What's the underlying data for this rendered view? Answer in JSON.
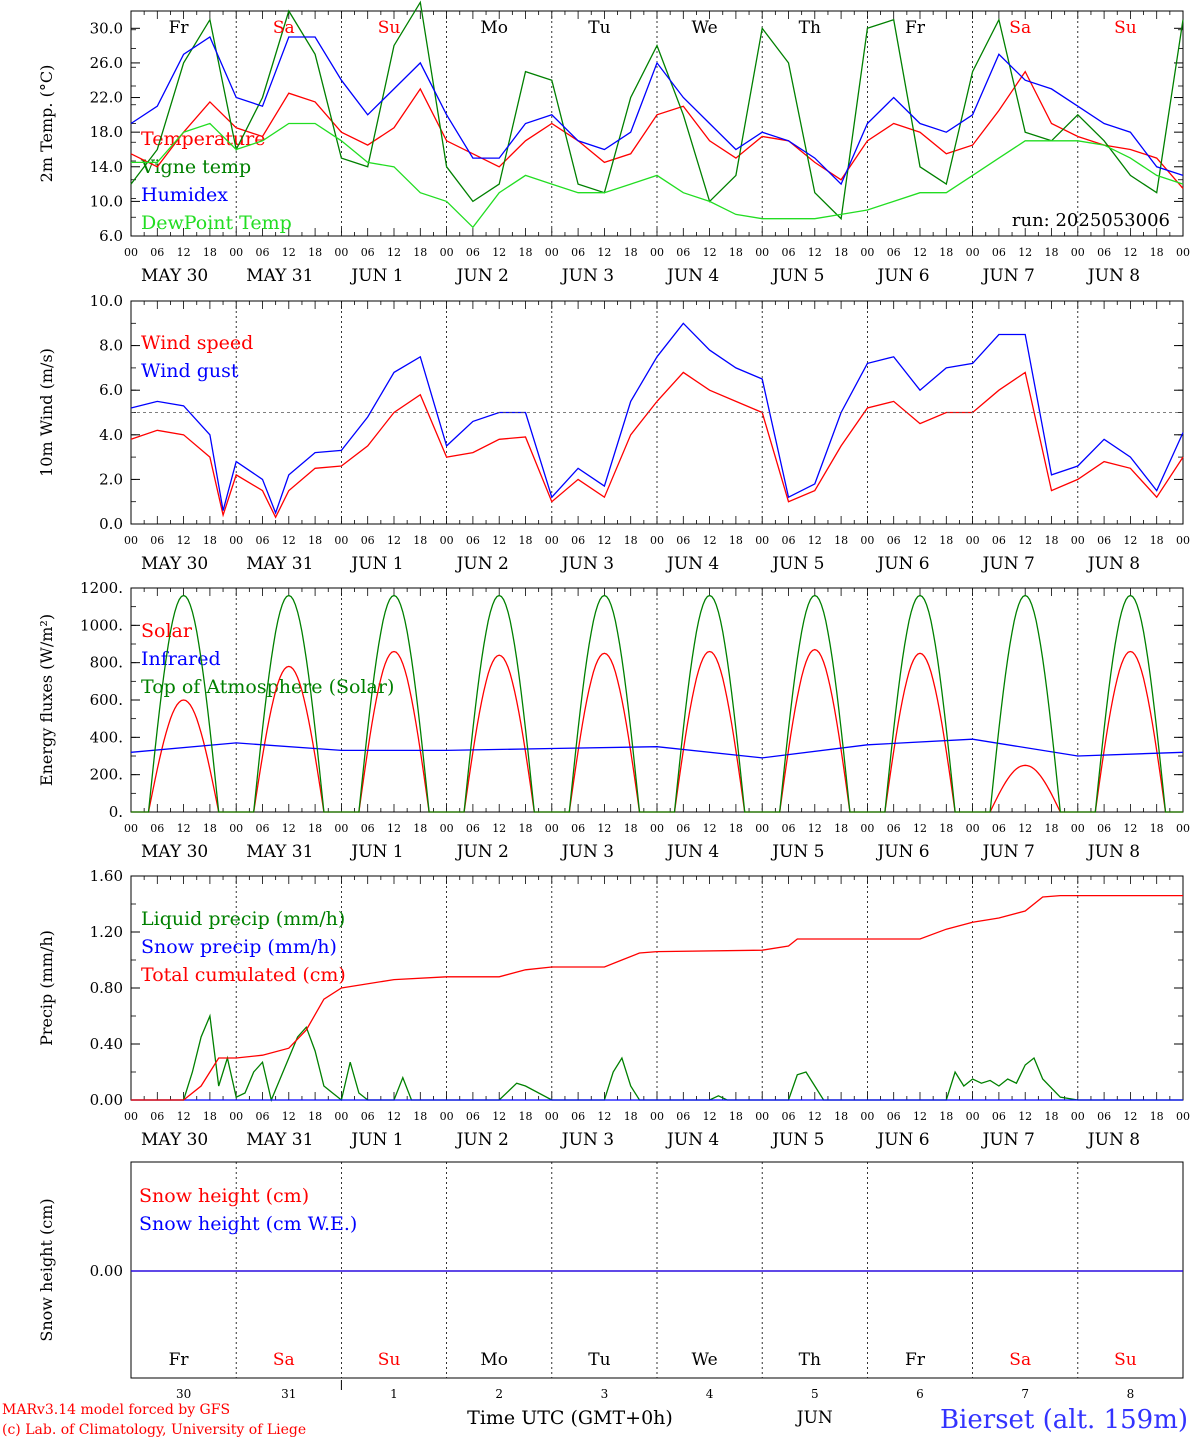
{
  "chart_data": [
    {
      "type": "line",
      "ylabel": "2m Temp. (°C)",
      "ylim": [
        6,
        32
      ],
      "yticks": [
        "6.0",
        "10.0",
        "14.0",
        "18.0",
        "22.0",
        "26.0",
        "30.0"
      ],
      "annotation": "run: 2025053006",
      "x_unit": "hours since 2025-05-30 00 UTC",
      "series": [
        {
          "name": "Temperature",
          "color": "#ff0000",
          "x": [
            0,
            6,
            12,
            18,
            24,
            30,
            36,
            42,
            48,
            54,
            60,
            66,
            72,
            78,
            84,
            90,
            96,
            102,
            108,
            114,
            120,
            126,
            132,
            138,
            144,
            150,
            156,
            162,
            168,
            174,
            180,
            186,
            192,
            198,
            204,
            210,
            216,
            222,
            228,
            234,
            240
          ],
          "values": [
            15.5,
            14,
            18,
            21.5,
            18.5,
            17.5,
            22.5,
            21.5,
            18,
            16.5,
            18.5,
            23,
            17,
            15.5,
            14,
            17,
            19,
            17,
            14.5,
            15.5,
            20,
            21,
            17,
            15,
            17.5,
            17,
            14.5,
            12.5,
            17,
            19,
            18,
            15.5,
            16.5,
            20.5,
            25,
            19,
            17.5,
            16.5,
            16,
            15,
            11.5
          ]
        },
        {
          "name": "Vigne temp",
          "color": "#008000",
          "x": [
            0,
            6,
            12,
            18,
            24,
            30,
            36,
            42,
            48,
            54,
            60,
            66,
            72,
            78,
            84,
            90,
            96,
            102,
            108,
            114,
            120,
            126,
            132,
            138,
            144,
            150,
            156,
            162,
            168,
            174,
            180,
            186,
            192,
            198,
            204,
            210,
            216,
            222,
            228,
            234,
            240
          ],
          "values": [
            12,
            16,
            26,
            31,
            16,
            22,
            32,
            27,
            15,
            14,
            28,
            33,
            14,
            10,
            12,
            25,
            24,
            12,
            11,
            22,
            28,
            20,
            10,
            13,
            30,
            26,
            11,
            8,
            30,
            31,
            14,
            12,
            25,
            31,
            18,
            17,
            20,
            17,
            13,
            11,
            31
          ]
        },
        {
          "name": "Humidex",
          "color": "#0000ff",
          "x": [
            0,
            6,
            12,
            18,
            24,
            30,
            36,
            42,
            48,
            54,
            60,
            66,
            72,
            78,
            84,
            90,
            96,
            102,
            108,
            114,
            120,
            126,
            132,
            138,
            144,
            150,
            156,
            162,
            168,
            174,
            180,
            186,
            192,
            198,
            204,
            210,
            216,
            222,
            228,
            234,
            240
          ],
          "values": [
            19,
            21,
            27,
            29,
            22,
            21,
            29,
            29,
            24,
            20,
            23,
            26,
            20,
            15,
            15,
            19,
            20,
            17,
            16,
            18,
            26,
            22,
            19,
            16,
            18,
            17,
            15,
            12,
            19,
            22,
            19,
            18,
            20,
            27,
            24,
            23,
            21,
            19,
            18,
            14,
            13
          ]
        },
        {
          "name": "DewPoint Temp",
          "color": "#22dd22",
          "x": [
            0,
            6,
            12,
            18,
            24,
            30,
            36,
            42,
            48,
            54,
            60,
            66,
            72,
            78,
            84,
            90,
            96,
            102,
            108,
            114,
            120,
            126,
            132,
            138,
            144,
            150,
            156,
            162,
            168,
            174,
            180,
            186,
            192,
            198,
            204,
            210,
            216,
            222,
            228,
            234,
            240
          ],
          "values": [
            14.5,
            14.5,
            18,
            19,
            16,
            17,
            19,
            19,
            17,
            14.5,
            14,
            11,
            10,
            7,
            11,
            13,
            12,
            11,
            11,
            12,
            13,
            11,
            10,
            8.5,
            8,
            8,
            8,
            8.5,
            9,
            10,
            11,
            11,
            13,
            15,
            17,
            17,
            17,
            16.5,
            15,
            13,
            12
          ]
        }
      ]
    },
    {
      "type": "line",
      "ylabel": "10m Wind (m/s)",
      "ylim": [
        0,
        10
      ],
      "yticks": [
        "0.0",
        "2.0",
        "4.0",
        "6.0",
        "8.0",
        "10.0"
      ],
      "reference_line": 5,
      "series": [
        {
          "name": "Wind speed",
          "color": "#ff0000",
          "x": [
            0,
            6,
            12,
            18,
            21,
            24,
            30,
            33,
            36,
            42,
            48,
            54,
            60,
            66,
            72,
            78,
            84,
            90,
            96,
            102,
            108,
            114,
            120,
            126,
            132,
            138,
            144,
            150,
            156,
            162,
            168,
            174,
            180,
            186,
            192,
            198,
            204,
            210,
            216,
            222,
            228,
            234,
            240
          ],
          "values": [
            3.8,
            4.2,
            4.0,
            3.0,
            0.4,
            2.2,
            1.5,
            0.3,
            1.5,
            2.5,
            2.6,
            3.5,
            5.0,
            5.8,
            3.0,
            3.2,
            3.8,
            3.9,
            1.0,
            2.0,
            1.2,
            4.0,
            5.5,
            6.8,
            6.0,
            5.5,
            5.0,
            1.0,
            1.5,
            3.5,
            5.2,
            5.5,
            4.5,
            5.0,
            5.0,
            6.0,
            6.8,
            1.5,
            2.0,
            2.8,
            2.5,
            1.2,
            3.0
          ]
        },
        {
          "name": "Wind gust",
          "color": "#0000ff",
          "x": [
            0,
            6,
            12,
            18,
            21,
            24,
            30,
            33,
            36,
            42,
            48,
            54,
            60,
            66,
            72,
            78,
            84,
            90,
            96,
            102,
            108,
            114,
            120,
            126,
            132,
            138,
            144,
            150,
            156,
            162,
            168,
            174,
            180,
            186,
            192,
            198,
            204,
            210,
            216,
            222,
            228,
            234,
            240
          ],
          "values": [
            5.2,
            5.5,
            5.3,
            4.0,
            0.6,
            2.8,
            2.0,
            0.5,
            2.2,
            3.2,
            3.3,
            4.8,
            6.8,
            7.5,
            3.5,
            4.6,
            5.0,
            5.0,
            1.2,
            2.5,
            1.7,
            5.5,
            7.5,
            9.0,
            7.8,
            7.0,
            6.5,
            1.2,
            1.8,
            5.0,
            7.2,
            7.5,
            6.0,
            7.0,
            7.2,
            8.5,
            8.5,
            2.2,
            2.6,
            3.8,
            3.0,
            1.5,
            4.1
          ]
        }
      ]
    },
    {
      "type": "line",
      "ylabel": "Energy fluxes (W/m²)",
      "ylim": [
        0,
        1200
      ],
      "yticks": [
        "0.",
        "200.",
        "400.",
        "600.",
        "800.",
        "1000.",
        "1200."
      ],
      "series": [
        {
          "name": "Solar",
          "color": "#ff0000",
          "daily_peak": [
            600,
            780,
            860,
            840,
            850,
            860,
            870,
            850,
            250,
            860
          ]
        },
        {
          "name": "Infrared",
          "color": "#0000ff",
          "x": [
            0,
            24,
            48,
            72,
            96,
            120,
            144,
            168,
            192,
            216,
            240
          ],
          "values": [
            320,
            370,
            330,
            330,
            340,
            350,
            290,
            360,
            390,
            300,
            320
          ]
        },
        {
          "name": "Top of Atmosphere (Solar)",
          "color": "#008000",
          "daily_peak": [
            1160,
            1160,
            1160,
            1160,
            1160,
            1160,
            1160,
            1160,
            1160,
            1160
          ]
        }
      ]
    },
    {
      "type": "line",
      "ylabel": "Precip (mm/h)",
      "ylim": [
        0,
        1.6
      ],
      "yticks": [
        "0.00",
        "0.40",
        "0.80",
        "1.20",
        "1.60"
      ],
      "series": [
        {
          "name": "Liquid precip (mm/h)",
          "color": "#008000",
          "x": [
            0,
            12,
            14,
            16,
            18,
            20,
            22,
            24,
            26,
            28,
            30,
            32,
            36,
            38,
            40,
            42,
            44,
            46,
            48,
            50,
            52,
            54,
            60,
            62,
            64,
            84,
            88,
            90,
            96,
            108,
            110,
            112,
            114,
            116,
            120,
            132,
            134,
            136,
            138,
            140,
            144,
            150,
            152,
            154,
            156,
            158,
            164,
            186,
            188,
            190,
            192,
            194,
            196,
            198,
            200,
            202,
            204,
            206,
            208,
            212,
            216,
            240
          ],
          "values": [
            0,
            0,
            0.2,
            0.45,
            0.6,
            0.1,
            0.3,
            0.02,
            0.05,
            0.2,
            0.27,
            0,
            0.3,
            0.45,
            0.52,
            0.35,
            0.1,
            0.05,
            0,
            0.27,
            0.05,
            0,
            0,
            0.16,
            0,
            0,
            0.12,
            0.1,
            0,
            0,
            0.2,
            0.3,
            0.1,
            0,
            0,
            0,
            0.03,
            0,
            0,
            0,
            0,
            0,
            0.18,
            0.2,
            0.1,
            0,
            0,
            0,
            0.2,
            0.1,
            0.15,
            0.12,
            0.14,
            0.1,
            0.15,
            0.12,
            0.25,
            0.3,
            0.15,
            0.02,
            0,
            0
          ]
        },
        {
          "name": "Snow precip (mm/h)",
          "color": "#0000ff",
          "x": [
            0,
            240
          ],
          "values": [
            0,
            0
          ]
        },
        {
          "name": "Total cumulated (cm)",
          "color": "#ff0000",
          "x": [
            0,
            12,
            16,
            20,
            24,
            30,
            36,
            40,
            44,
            48,
            60,
            72,
            84,
            90,
            96,
            108,
            112,
            116,
            120,
            144,
            150,
            152,
            156,
            180,
            186,
            192,
            198,
            204,
            208,
            212,
            216,
            240
          ],
          "values": [
            0,
            0,
            0.1,
            0.3,
            0.3,
            0.32,
            0.37,
            0.5,
            0.72,
            0.8,
            0.86,
            0.88,
            0.88,
            0.93,
            0.95,
            0.95,
            1.0,
            1.05,
            1.06,
            1.07,
            1.1,
            1.15,
            1.15,
            1.15,
            1.22,
            1.27,
            1.3,
            1.35,
            1.45,
            1.46,
            1.46,
            1.46
          ]
        }
      ]
    },
    {
      "type": "line",
      "ylabel": "Snow height (cm)",
      "yticks": [
        "0.00"
      ],
      "series": [
        {
          "name": "Snow height (cm)",
          "color": "#ff0000",
          "x": [
            0,
            240
          ],
          "values": [
            0,
            0
          ]
        },
        {
          "name": "Snow height (cm W.E.)",
          "color": "#0000ff",
          "x": [
            0,
            240
          ],
          "values": [
            0,
            0
          ]
        }
      ]
    }
  ],
  "x_axis": {
    "hour_labels": [
      "00",
      "06",
      "12",
      "18"
    ],
    "date_labels": [
      "MAY 30",
      "MAY 31",
      "JUN  1",
      "JUN  2",
      "JUN  3",
      "JUN  4",
      "JUN  5",
      "JUN  6",
      "JUN  7",
      "JUN  8"
    ],
    "weekdays": [
      "Fr",
      "Sa",
      "Su",
      "Mo",
      "Tu",
      "We",
      "Th",
      "Fr",
      "Sa",
      "Su"
    ],
    "weekday_colors": [
      "#000000",
      "#ff0000",
      "#ff0000",
      "#000000",
      "#000000",
      "#000000",
      "#000000",
      "#000000",
      "#ff0000",
      "#ff0000"
    ],
    "bottom_day_numbers": [
      "30",
      "31",
      "1",
      "2",
      "3",
      "4",
      "5",
      "6",
      "7",
      "8"
    ],
    "bottom_month": "JUN",
    "bottom_label": "Time UTC (GMT+0h)"
  },
  "footer": {
    "credit_line1": "MARv3.14 model forced by GFS",
    "credit_line2": "(c) Lab. of Climatology, University of Liege",
    "station": "Bierset (alt. 159m)"
  }
}
